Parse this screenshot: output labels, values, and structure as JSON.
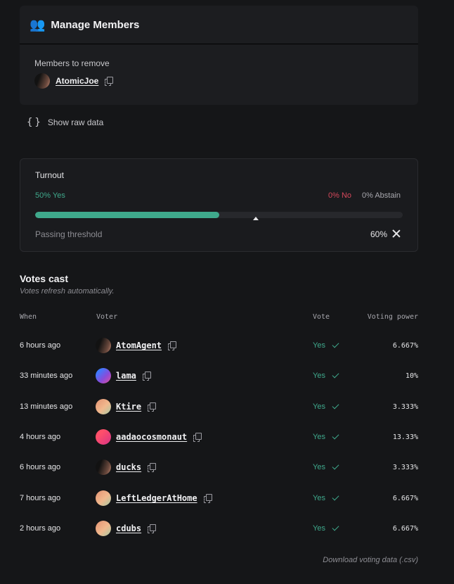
{
  "manage": {
    "title": "Manage Members",
    "icon": "people-icon",
    "members_label": "Members to remove",
    "member": "AtomicJoe"
  },
  "raw": {
    "label": "Show raw data"
  },
  "turnout": {
    "title": "Turnout",
    "yes_label": "50% Yes",
    "no_label": "0% No",
    "abstain_label": "0% Abstain",
    "yes_fraction": 0.5,
    "threshold_fraction": 0.6,
    "threshold_label": "Passing threshold",
    "threshold_value": "60%",
    "colors": {
      "yes": "#3fa98c",
      "no": "#d5485b"
    }
  },
  "votes": {
    "title": "Votes cast",
    "subtitle": "Votes refresh automatically.",
    "headers": {
      "when": "When",
      "voter": "Voter",
      "vote": "Vote",
      "power": "Voting power"
    },
    "rows": [
      {
        "when": "6 hours ago",
        "voter": "AtomAgent",
        "vote": "Yes",
        "power": "6.667%",
        "avatar": "dark"
      },
      {
        "when": "33 minutes ago",
        "voter": "lama",
        "vote": "Yes",
        "power": "10%",
        "avatar": "blue"
      },
      {
        "when": "13 minutes ago",
        "voter": "Ktire",
        "vote": "Yes",
        "power": "3.333%",
        "avatar": "peach"
      },
      {
        "when": "4 hours ago",
        "voter": "aadaocosmonaut",
        "vote": "Yes",
        "power": "13.33%",
        "avatar": "pink"
      },
      {
        "when": "6 hours ago",
        "voter": "ducks",
        "vote": "Yes",
        "power": "3.333%",
        "avatar": "dark"
      },
      {
        "when": "7 hours ago",
        "voter": "LeftLedgerAtHome",
        "vote": "Yes",
        "power": "6.667%",
        "avatar": "peach"
      },
      {
        "when": "2 hours ago",
        "voter": "cdubs",
        "vote": "Yes",
        "power": "6.667%",
        "avatar": "peach"
      }
    ],
    "download": "Download voting data (.csv)"
  }
}
